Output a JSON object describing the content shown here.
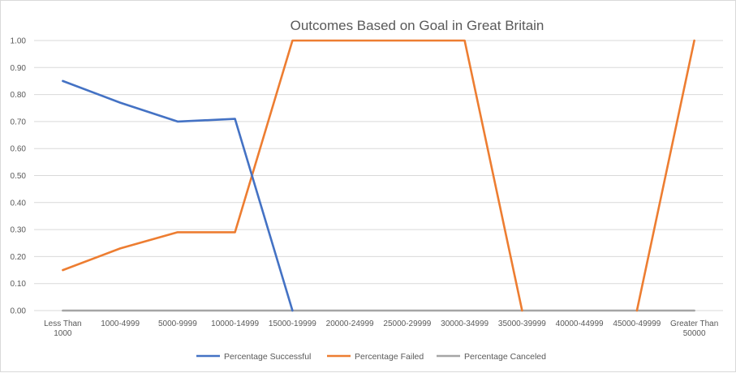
{
  "chart_data": {
    "type": "line",
    "title": "Outcomes Based on Goal in Great Britain",
    "xlabel": "",
    "ylabel": "",
    "categories": [
      [
        "Less Than",
        "1000"
      ],
      [
        "1000-4999"
      ],
      [
        "5000-9999"
      ],
      [
        "10000-14999"
      ],
      [
        "15000-19999"
      ],
      [
        "20000-24999"
      ],
      [
        "25000-29999"
      ],
      [
        "30000-34999"
      ],
      [
        "35000-39999"
      ],
      [
        "40000-44999"
      ],
      [
        "45000-49999"
      ],
      [
        "Greater Than",
        "50000"
      ]
    ],
    "ylim": [
      0,
      1
    ],
    "yticks": [
      "0.00",
      "0.10",
      "0.20",
      "0.30",
      "0.40",
      "0.50",
      "0.60",
      "0.70",
      "0.80",
      "0.90",
      "1.00"
    ],
    "grid": true,
    "legend_position": "bottom",
    "series": [
      {
        "name": "Percentage Successful",
        "color": "#4472c4",
        "values": [
          0.85,
          0.77,
          0.7,
          0.71,
          0.0,
          null,
          null,
          0.0,
          null,
          null,
          null,
          null
        ]
      },
      {
        "name": "Percentage Failed",
        "color": "#ed7d31",
        "values": [
          0.15,
          0.23,
          0.29,
          0.29,
          1.0,
          1.0,
          1.0,
          1.0,
          0.0,
          null,
          0.0,
          1.0
        ]
      },
      {
        "name": "Percentage Canceled",
        "color": "#a5a5a5",
        "values": [
          0,
          0,
          0,
          0,
          0,
          0,
          0,
          0,
          0,
          0,
          0,
          0
        ]
      }
    ]
  }
}
